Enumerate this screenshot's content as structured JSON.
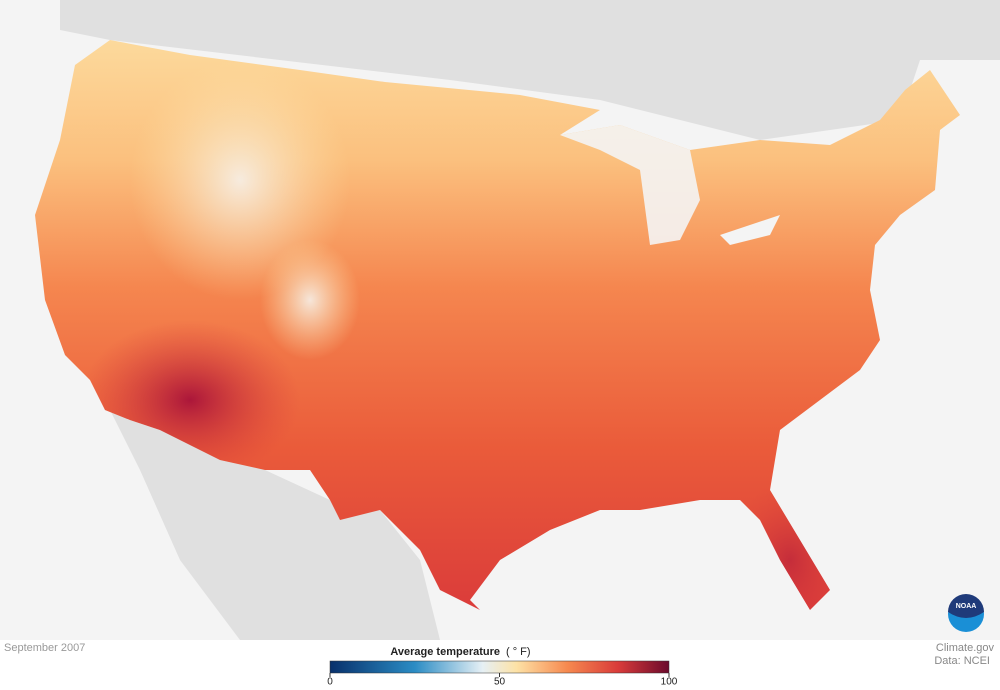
{
  "caption": {
    "date": "September 2007"
  },
  "legend": {
    "title": "Average temperature",
    "unit": "( ° F)",
    "range": [
      0,
      100
    ],
    "ticks": [
      0,
      50,
      100
    ]
  },
  "credit": {
    "source": "Climate.gov",
    "data": "Data: NCEI",
    "logo": "NOAA"
  }
}
